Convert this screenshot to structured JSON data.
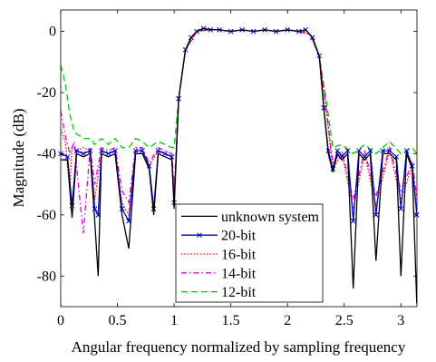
{
  "chart_data": {
    "type": "line",
    "title": "",
    "xlabel": "Angular frequency normalized by  sampling frequency",
    "ylabel": "Magnitude (dB)",
    "xlim": [
      0,
      3.1416
    ],
    "ylim": [
      -90,
      7
    ],
    "x_ticks": [
      0,
      0.5,
      1,
      1.5,
      2,
      2.5,
      3
    ],
    "x_tick_labels": [
      "0",
      "0.5",
      "1",
      "1.5",
      "2",
      "2.5",
      "3"
    ],
    "y_ticks": [
      0,
      -20,
      -40,
      -60,
      -80
    ],
    "y_tick_labels": [
      "0",
      "-20",
      "-40",
      "-60",
      "-80"
    ],
    "grid": false,
    "legend_position": "bottom-center",
    "series": [
      {
        "name": "unknown system",
        "color": "#000000",
        "style": "solid",
        "x": [
          0,
          0.06,
          0.1,
          0.14,
          0.2,
          0.26,
          0.3,
          0.33,
          0.36,
          0.42,
          0.48,
          0.54,
          0.6,
          0.66,
          0.72,
          0.78,
          0.82,
          0.86,
          0.92,
          0.98,
          1.0,
          1.04,
          1.1,
          1.15,
          1.2,
          1.26,
          1.32,
          1.4,
          1.5,
          1.6,
          1.7,
          1.8,
          1.9,
          2.0,
          2.1,
          2.16,
          2.22,
          2.28,
          2.32,
          2.36,
          2.4,
          2.44,
          2.48,
          2.53,
          2.58,
          2.63,
          2.68,
          2.73,
          2.78,
          2.84,
          2.9,
          2.96,
          3.0,
          3.05,
          3.1,
          3.14
        ],
        "y": [
          -42,
          -42,
          -61,
          -40,
          -41,
          -40,
          -62,
          -80,
          -40,
          -41,
          -40,
          -60,
          -71,
          -40,
          -40,
          -45,
          -60,
          -40,
          -41,
          -42,
          -58,
          -22,
          -6,
          -2,
          0,
          1,
          0.5,
          0.5,
          0,
          0.5,
          0,
          0.5,
          0,
          0.5,
          0,
          0.5,
          -2,
          -8,
          -25,
          -40,
          -46,
          -40,
          -42,
          -40,
          -84,
          -40,
          -42,
          -40,
          -75,
          -40,
          -40,
          -42,
          -80,
          -40,
          -45,
          -89
        ]
      },
      {
        "name": "20-bit",
        "color": "#0000cc",
        "style": "solid-x",
        "x": [
          0,
          0.06,
          0.1,
          0.14,
          0.2,
          0.26,
          0.3,
          0.33,
          0.36,
          0.42,
          0.48,
          0.54,
          0.6,
          0.66,
          0.72,
          0.78,
          0.82,
          0.86,
          0.92,
          0.98,
          1.0,
          1.04,
          1.1,
          1.15,
          1.2,
          1.26,
          1.32,
          1.4,
          1.5,
          1.6,
          1.7,
          1.8,
          1.9,
          2.0,
          2.1,
          2.16,
          2.22,
          2.28,
          2.32,
          2.36,
          2.4,
          2.44,
          2.48,
          2.53,
          2.58,
          2.63,
          2.68,
          2.73,
          2.78,
          2.84,
          2.9,
          2.96,
          3.0,
          3.05,
          3.1,
          3.14
        ],
        "y": [
          -40,
          -41,
          -57,
          -39,
          -40,
          -39,
          -58,
          -60,
          -39,
          -40,
          -39,
          -58,
          -62,
          -39,
          -39,
          -44,
          -58,
          -39,
          -40,
          -41,
          -56,
          -22,
          -6,
          -2,
          0,
          1,
          0.5,
          0.5,
          0,
          0.5,
          0,
          0.5,
          0,
          0.5,
          0,
          0.5,
          -2,
          -8,
          -25,
          -39,
          -45,
          -39,
          -41,
          -39,
          -62,
          -39,
          -41,
          -39,
          -60,
          -39,
          -39,
          -41,
          -58,
          -39,
          -44,
          -60
        ]
      },
      {
        "name": "16-bit",
        "color": "#ff0000",
        "style": "dotted",
        "x": [
          0,
          0.04,
          0.08,
          0.1,
          0.14,
          0.2,
          0.26,
          0.3,
          0.36,
          0.42,
          0.48,
          0.54,
          0.6,
          0.66,
          0.72,
          0.78,
          0.86,
          0.92,
          0.98,
          1.0,
          1.04,
          1.1,
          1.2,
          1.3,
          1.4,
          1.5,
          1.6,
          1.7,
          1.8,
          1.9,
          2.0,
          2.1,
          2.2,
          2.28,
          2.34,
          2.4,
          2.48,
          2.58,
          2.68,
          2.78,
          2.9,
          3.0,
          3.1,
          3.14
        ],
        "y": [
          -32,
          -36,
          -52,
          -38,
          -39,
          -38,
          -39,
          -55,
          -39,
          -40,
          -39,
          -56,
          -60,
          -39,
          -39,
          -44,
          -39,
          -40,
          -41,
          -55,
          -22,
          -6,
          0,
          0.5,
          0.5,
          0,
          0.5,
          0,
          0.5,
          0,
          0.5,
          0,
          -1,
          -8,
          -25,
          -45,
          -40,
          -58,
          -40,
          -57,
          -39,
          -55,
          -44,
          -57
        ]
      },
      {
        "name": "14-bit",
        "color": "#dd00dd",
        "style": "dash-dot",
        "x": [
          0,
          0.04,
          0.08,
          0.12,
          0.16,
          0.2,
          0.26,
          0.3,
          0.36,
          0.42,
          0.48,
          0.54,
          0.6,
          0.66,
          0.72,
          0.78,
          0.86,
          0.92,
          0.98,
          1.0,
          1.04,
          1.1,
          1.2,
          1.3,
          1.4,
          1.5,
          1.6,
          1.7,
          1.8,
          1.9,
          2.0,
          2.1,
          2.2,
          2.28,
          2.34,
          2.4,
          2.48,
          2.58,
          2.68,
          2.78,
          2.9,
          3.0,
          3.1,
          3.14
        ],
        "y": [
          -26,
          -34,
          -40,
          -36,
          -52,
          -66,
          -38,
          -50,
          -38,
          -39,
          -38,
          -52,
          -56,
          -38,
          -38,
          -43,
          -38,
          -39,
          -40,
          -52,
          -22,
          -6,
          0,
          0.5,
          0.5,
          0,
          0.5,
          0,
          0.5,
          0,
          0.5,
          0,
          -1,
          -8,
          -25,
          -43,
          -39,
          -55,
          -39,
          -54,
          -38,
          -52,
          -43,
          -54
        ]
      },
      {
        "name": "12-bit",
        "color": "#00cc00",
        "style": "dashed",
        "x": [
          0,
          0.04,
          0.08,
          0.12,
          0.16,
          0.2,
          0.26,
          0.3,
          0.36,
          0.42,
          0.48,
          0.54,
          0.6,
          0.66,
          0.72,
          0.78,
          0.86,
          0.92,
          0.98,
          1.0,
          1.04,
          1.1,
          1.2,
          1.3,
          1.4,
          1.5,
          1.6,
          1.7,
          1.8,
          1.9,
          2.0,
          2.1,
          2.2,
          2.28,
          2.34,
          2.4,
          2.48,
          2.58,
          2.68,
          2.78,
          2.9,
          3.0,
          3.1,
          3.14
        ],
        "y": [
          -11,
          -17,
          -27,
          -33,
          -34,
          -35,
          -35,
          -37,
          -35,
          -37,
          -35,
          -38,
          -38,
          -35,
          -36,
          -38,
          -36,
          -37,
          -38,
          -38,
          -22,
          -6,
          0,
          0.5,
          0.5,
          0,
          0.5,
          0,
          0.5,
          0,
          0.5,
          0,
          -1,
          -8,
          -22,
          -38,
          -37,
          -40,
          -37,
          -40,
          -36,
          -40,
          -38,
          -40
        ]
      }
    ]
  }
}
